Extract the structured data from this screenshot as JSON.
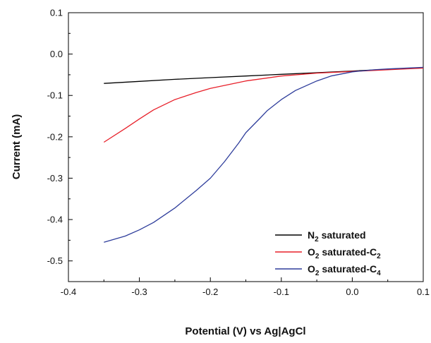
{
  "chart_data": {
    "type": "line",
    "title": "",
    "xlabel": "Potential (V) vs Ag|AgCl",
    "ylabel": "Current (mA)",
    "xlim": [
      -0.4,
      0.1
    ],
    "ylim": [
      -0.55,
      0.1
    ],
    "xticks": [
      -0.4,
      -0.3,
      -0.2,
      -0.1,
      0.0,
      0.1
    ],
    "xtick_labels": [
      "-0.4",
      "-0.3",
      "-0.2",
      "-0.1",
      "0.0",
      "0.1"
    ],
    "yticks": [
      0.1,
      0.0,
      -0.1,
      -0.2,
      -0.3,
      -0.4,
      -0.5
    ],
    "ytick_labels": [
      "0.1",
      "0.0",
      "-0.1",
      "-0.2",
      "-0.3",
      "-0.4",
      "-0.5"
    ],
    "grid": false,
    "legend_position": "bottom-right",
    "series": [
      {
        "legend_main": "N",
        "legend_sub": "2",
        "legend_rest": " saturated",
        "legend_sub2": "",
        "color": "#000000",
        "x": [
          -0.35,
          -0.3,
          -0.25,
          -0.2,
          -0.15,
          -0.1,
          -0.05,
          0.0,
          0.05,
          0.1
        ],
        "y": [
          -0.071,
          -0.066,
          -0.061,
          -0.057,
          -0.053,
          -0.049,
          -0.045,
          -0.041,
          -0.037,
          -0.033
        ]
      },
      {
        "legend_main": "O",
        "legend_sub": "2",
        "legend_rest": " saturated-C",
        "legend_sub2": "2",
        "color": "#e8202a",
        "x": [
          -0.35,
          -0.32,
          -0.3,
          -0.28,
          -0.25,
          -0.22,
          -0.2,
          -0.15,
          -0.1,
          -0.05,
          0.0,
          0.05,
          0.1
        ],
        "y": [
          -0.213,
          -0.18,
          -0.157,
          -0.135,
          -0.11,
          -0.093,
          -0.083,
          -0.065,
          -0.053,
          -0.046,
          -0.042,
          -0.038,
          -0.034
        ]
      },
      {
        "legend_main": "O",
        "legend_sub": "2",
        "legend_rest": " saturated-C",
        "legend_sub2": "4",
        "color": "#2e3d9b",
        "x": [
          -0.35,
          -0.32,
          -0.3,
          -0.28,
          -0.25,
          -0.22,
          -0.2,
          -0.18,
          -0.16,
          -0.15,
          -0.13,
          -0.12,
          -0.1,
          -0.08,
          -0.05,
          -0.03,
          0.0,
          0.03,
          0.05,
          0.1
        ],
        "y": [
          -0.455,
          -0.44,
          -0.425,
          -0.407,
          -0.372,
          -0.33,
          -0.3,
          -0.26,
          -0.215,
          -0.19,
          -0.155,
          -0.137,
          -0.11,
          -0.088,
          -0.065,
          -0.053,
          -0.043,
          -0.038,
          -0.036,
          -0.032
        ]
      }
    ]
  }
}
